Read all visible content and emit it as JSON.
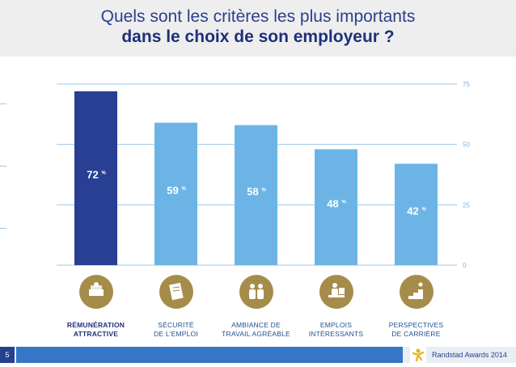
{
  "title": {
    "line1": "Quels sont les critères les plus importants",
    "line2": "dans le choix de son employeur ?"
  },
  "colors": {
    "highlight_bar": "#283f94",
    "bar": "#6cb4e6",
    "grid": "#9cc8ea",
    "icon_circle": "#a68c4a"
  },
  "chart_data": {
    "type": "bar",
    "title": "Quels sont les critères les plus importants dans le choix de son employeur ?",
    "categories": [
      "RÉMUNÉRATION ATTRACTIVE",
      "SÉCURITÉ DE L'EMPLOI",
      "AMBIANCE DE TRAVAIL AGRÉABLE",
      "EMPLOIS INTÉRESSANTS",
      "PERSPECTIVES DE CARRIÈRE"
    ],
    "category_lines": [
      [
        "RÉMUNÉRATION",
        "ATTRACTIVE"
      ],
      [
        "SÉCURITÉ",
        "DE L'EMPLOI"
      ],
      [
        "AMBIANCE DE",
        "TRAVAIL AGRÉABLE"
      ],
      [
        "EMPLOIS",
        "INTÉRESSANTS"
      ],
      [
        "PERSPECTIVES",
        "DE CARRIÈRE"
      ]
    ],
    "values": [
      72,
      59,
      58,
      48,
      42
    ],
    "value_unit": "%",
    "highlight_index": 0,
    "ylim": [
      0,
      75
    ],
    "y_ticks": [
      "0",
      "25",
      "50",
      "75"
    ],
    "y_axis_side": "right",
    "grid": true,
    "icons": [
      "money-stack-icon",
      "contract-document-icon",
      "people-pair-icon",
      "person-at-desk-icon",
      "career-stairs-icon"
    ]
  },
  "footer": {
    "page_number": "5",
    "text": "Randstad Awards 2014"
  }
}
